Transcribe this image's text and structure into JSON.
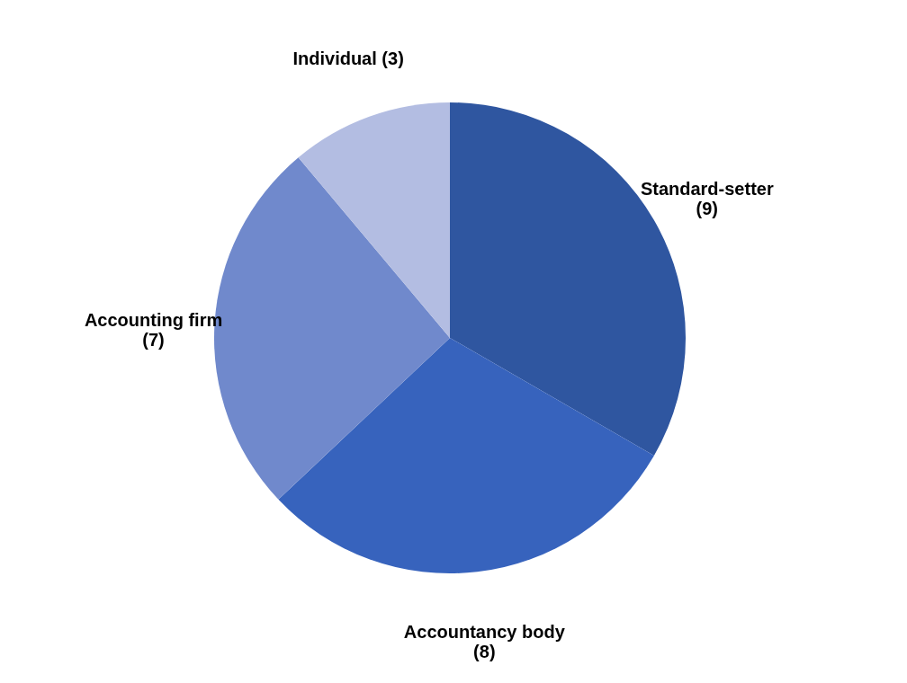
{
  "chart_data": {
    "type": "pie",
    "categories": [
      "Standard-setter",
      "Accountancy body",
      "Accounting firm",
      "Individual"
    ],
    "values": [
      9,
      8,
      7,
      3
    ],
    "colors": [
      "#2f56a0",
      "#3763bd",
      "#7089cc",
      "#b3bde2"
    ],
    "value_labels": [
      "(9)",
      "(8)",
      "(7)",
      "(3)"
    ],
    "legend": false
  }
}
